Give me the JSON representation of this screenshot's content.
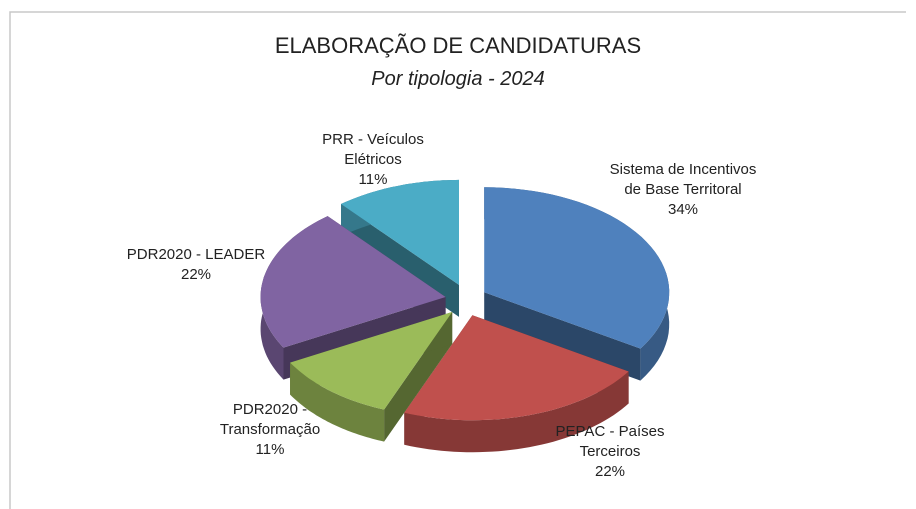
{
  "chart_data": {
    "type": "pie",
    "title": "ELABORAÇÃO DE CANDIDATURAS",
    "subtitle": "Por tipologia - 2024",
    "categories": [
      "Sistema de Incentivos de Base Territoral",
      "PEPAC - Países Terceiros",
      "PDR2020 - Transformação",
      "PDR2020 - LEADER",
      "PRR - Veículos Elétricos"
    ],
    "values": [
      34,
      22,
      11,
      22,
      11
    ],
    "value_labels": [
      "34%",
      "22%",
      "11%",
      "22%",
      "11%"
    ],
    "colors": [
      "#4f81bd",
      "#c0504d",
      "#9bbb59",
      "#8064a2",
      "#4bacc6"
    ]
  }
}
